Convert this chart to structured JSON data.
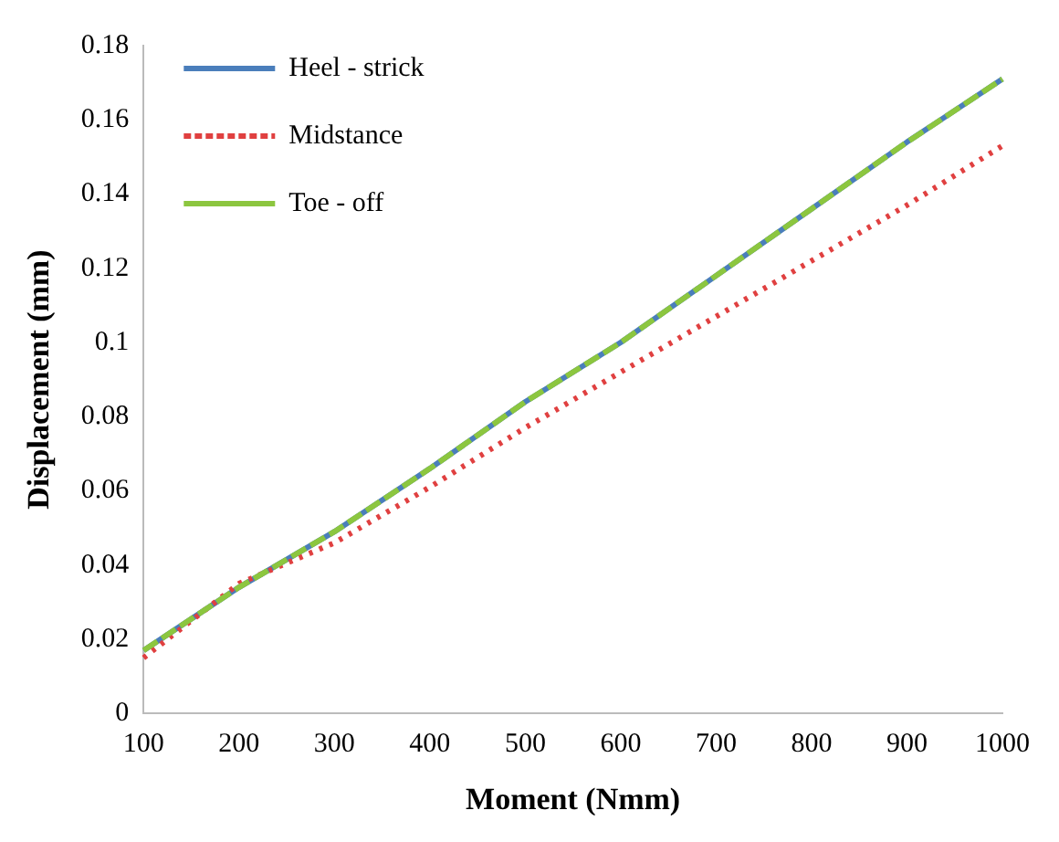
{
  "chart_data": {
    "type": "line",
    "xlabel": "Moment (Nmm)",
    "ylabel": "Displacement (mm)",
    "categories": [
      "100",
      "200",
      "300",
      "400",
      "500",
      "600",
      "700",
      "800",
      "900",
      "1000"
    ],
    "series": [
      {
        "name": "Heel - strick",
        "color": "#4a7ebb",
        "line_style": "solid",
        "values": [
          0.017,
          0.034,
          0.049,
          0.066,
          0.084,
          0.1,
          0.118,
          0.136,
          0.154,
          0.171
        ]
      },
      {
        "name": "Midstance",
        "color": "#e04040",
        "line_style": "dotted",
        "values": [
          0.015,
          0.035,
          0.046,
          0.061,
          0.077,
          0.092,
          0.107,
          0.122,
          0.137,
          0.153
        ]
      },
      {
        "name": "Toe - off",
        "color": "#8cc63f",
        "line_style": "dashed",
        "values": [
          0.017,
          0.034,
          0.049,
          0.066,
          0.084,
          0.1,
          0.118,
          0.136,
          0.154,
          0.171
        ]
      }
    ],
    "ylim": [
      0,
      0.18
    ],
    "yticks": [
      0,
      0.02,
      0.04,
      0.06,
      0.08,
      0.1,
      0.12,
      0.14,
      0.16,
      0.18
    ],
    "grid": false,
    "legend": "top left",
    "marker": "none"
  }
}
